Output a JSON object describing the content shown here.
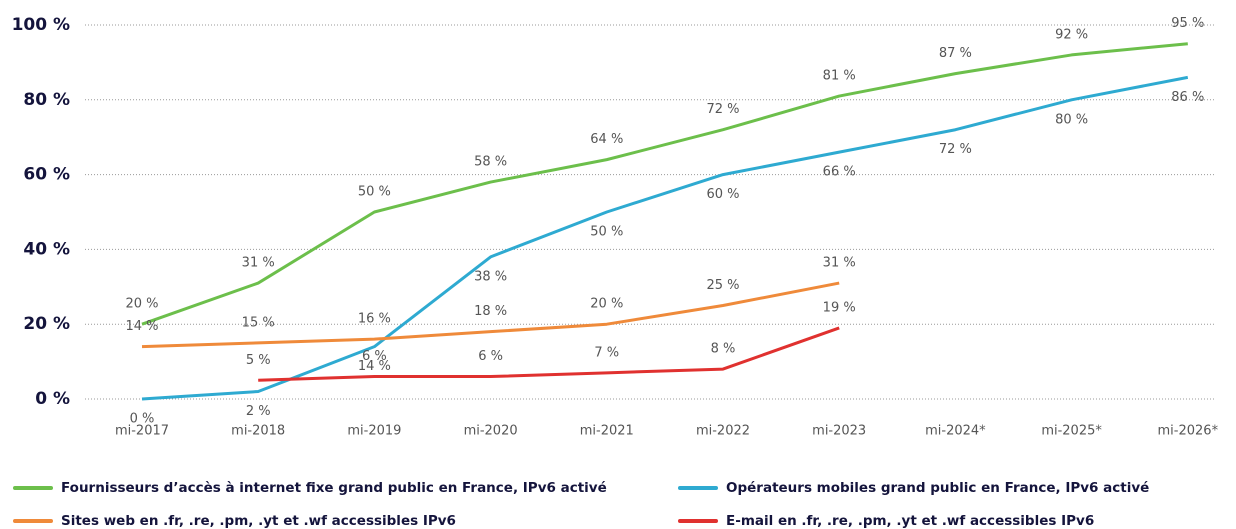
{
  "chart_data": {
    "type": "line",
    "categories": [
      "mi-2017",
      "mi-2018",
      "mi-2019",
      "mi-2020",
      "mi-2021",
      "mi-2022",
      "mi-2023",
      "mi-2024*",
      "mi-2025*",
      "mi-2026*"
    ],
    "ylim": [
      0,
      100
    ],
    "yticks": [
      {
        "value": 0,
        "label": "0 %"
      },
      {
        "value": 20,
        "label": "20 %"
      },
      {
        "value": 40,
        "label": "40 %"
      },
      {
        "value": 60,
        "label": "60 %"
      },
      {
        "value": 80,
        "label": "80 %"
      },
      {
        "value": 100,
        "label": "100 %"
      }
    ],
    "grid": true,
    "series": [
      {
        "name": "Fournisseurs d’accès à internet fixe grand public en France, IPv6 activé",
        "color": "#6cbf4b",
        "values": [
          20,
          31,
          50,
          58,
          64,
          72,
          81,
          87,
          92,
          95
        ],
        "value_labels": [
          "20 %",
          "31 %",
          "50 %",
          "58 %",
          "64 %",
          "72 %",
          "81 %",
          "87 %",
          "92 %",
          "95 %"
        ]
      },
      {
        "name": "Opérateurs mobiles grand public en France, IPv6 activé",
        "color": "#2eaad1",
        "values": [
          0,
          2,
          14,
          38,
          50,
          60,
          66,
          72,
          80,
          86
        ],
        "value_labels": [
          "0 %",
          "2 %",
          "14 %",
          "38 %",
          "50 %",
          "60 %",
          "66 %",
          "72 %",
          "80 %",
          "86 %"
        ]
      },
      {
        "name": "Sites web en .fr, .re, .pm, .yt et .wf accessibles IPv6",
        "color": "#ef8a3a",
        "values": [
          14,
          15,
          16,
          18,
          20,
          25,
          31,
          null,
          null,
          null
        ],
        "value_labels": [
          "14 %",
          "15 %",
          "16 %",
          "18 %",
          "20 %",
          "25 %",
          "31 %",
          null,
          null,
          null
        ]
      },
      {
        "name": "E-mail en .fr, .re, .pm, .yt et .wf accessibles IPv6",
        "color": "#e0312f",
        "values": [
          null,
          5,
          6,
          6,
          7,
          8,
          19,
          null,
          null,
          null
        ],
        "value_labels": [
          null,
          "5 %",
          "6 %",
          "6 %",
          "7 %",
          "8 %",
          "19 %",
          null,
          null,
          null
        ]
      }
    ]
  }
}
